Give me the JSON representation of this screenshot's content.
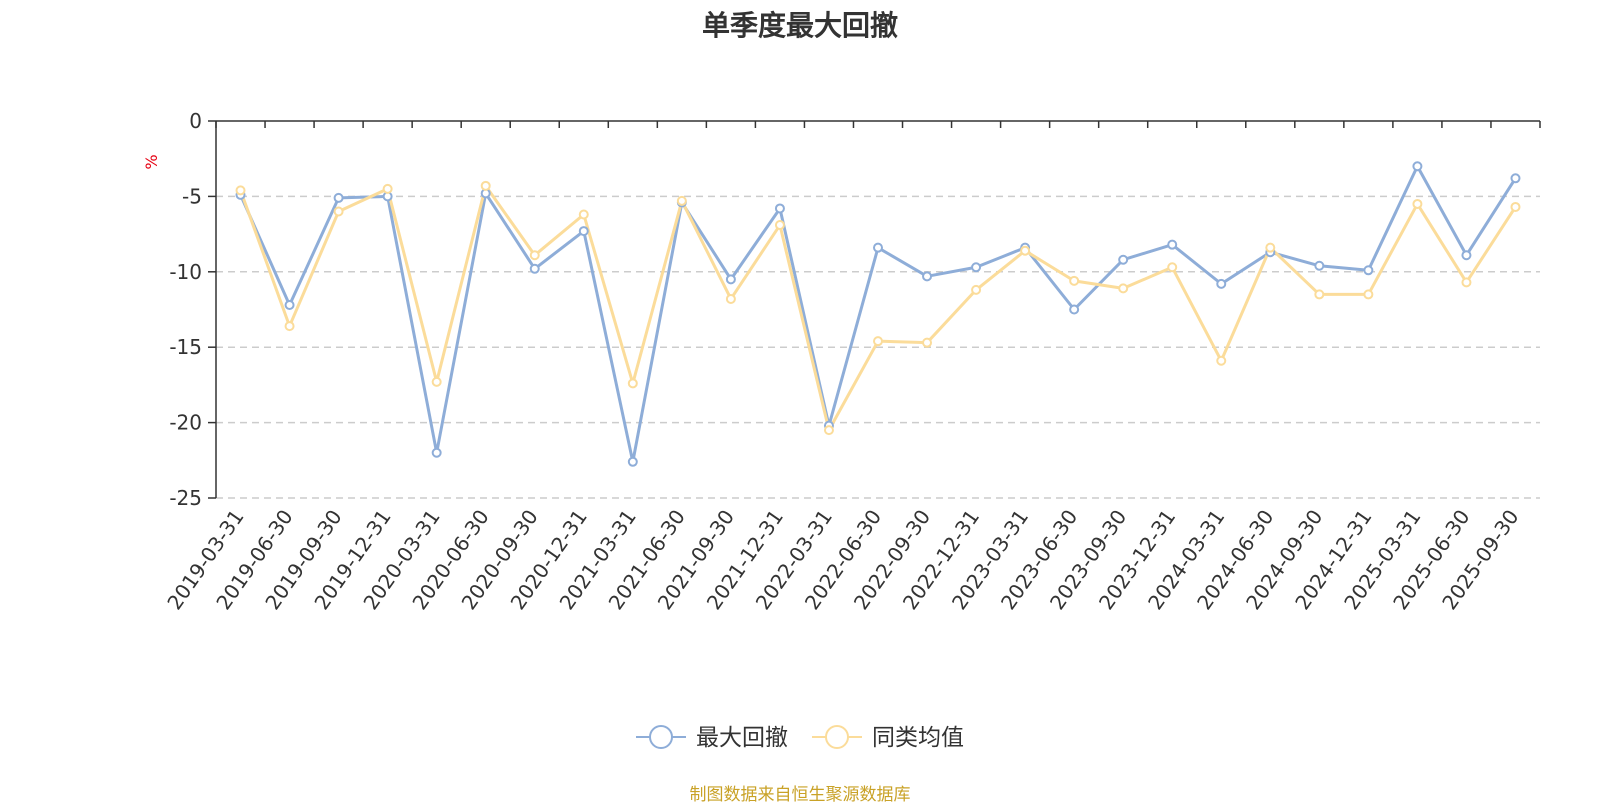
{
  "chart_data": {
    "type": "line",
    "title": "单季度最大回撤",
    "ylabel": "%",
    "ylim": [
      -25,
      0
    ],
    "yticks": [
      0,
      -5,
      -10,
      -15,
      -20,
      -25
    ],
    "grid": true,
    "legend_position": "bottom-center",
    "categories": [
      "2019-03-31",
      "2019-06-30",
      "2019-09-30",
      "2019-12-31",
      "2020-03-31",
      "2020-06-30",
      "2020-09-30",
      "2020-12-31",
      "2021-03-31",
      "2021-06-30",
      "2021-09-30",
      "2021-12-31",
      "2022-03-31",
      "2022-06-30",
      "2022-09-30",
      "2022-12-31",
      "2023-03-31",
      "2023-06-30",
      "2023-09-30",
      "2023-12-31",
      "2024-03-31",
      "2024-06-30",
      "2024-09-30",
      "2024-12-31",
      "2025-03-31",
      "2025-06-30",
      "2025-09-30"
    ],
    "series": [
      {
        "name": "最大回撤",
        "color": "#8eadd8",
        "values": [
          -4.9,
          -12.2,
          -5.1,
          -5.0,
          -22.0,
          -4.8,
          -9.8,
          -7.3,
          -22.6,
          -5.4,
          -10.5,
          -5.8,
          -20.2,
          -8.4,
          -10.3,
          -9.7,
          -8.4,
          -12.5,
          -9.2,
          -8.2,
          -10.8,
          -8.7,
          -9.6,
          -9.9,
          -3.0,
          -8.9,
          -3.8
        ]
      },
      {
        "name": "同类均值",
        "color": "#fbdc9a",
        "values": [
          -4.6,
          -13.6,
          -6.0,
          -4.5,
          -17.3,
          -4.3,
          -8.9,
          -6.2,
          -17.4,
          -5.3,
          -11.8,
          -6.9,
          -20.5,
          -14.6,
          -14.7,
          -11.2,
          -8.6,
          -10.6,
          -11.1,
          -9.7,
          -15.9,
          -8.4,
          -11.5,
          -11.5,
          -5.5,
          -10.7,
          -5.7
        ]
      }
    ]
  },
  "footer": {
    "source": "制图数据来自恒生聚源数据库"
  }
}
